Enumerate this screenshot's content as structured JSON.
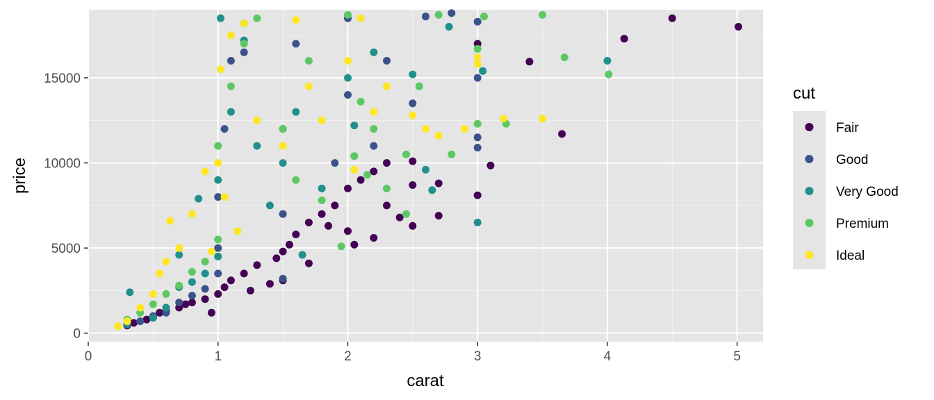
{
  "chart_data": {
    "type": "scatter",
    "title": "",
    "xlabel": "carat",
    "ylabel": "price",
    "xlim": [
      0.0,
      5.2
    ],
    "ylim": [
      -500,
      19000
    ],
    "x_ticks": [
      0,
      1,
      2,
      3,
      4,
      5
    ],
    "x_tick_labels": [
      "0",
      "1",
      "2",
      "3",
      "4",
      "5"
    ],
    "y_ticks": [
      0,
      5000,
      10000,
      15000
    ],
    "y_tick_labels": [
      "0",
      "5000",
      "10000",
      "15000"
    ],
    "grid": true,
    "legend": {
      "title": "cut",
      "position": "right"
    },
    "series": [
      {
        "name": "Fair",
        "color": "#440154",
        "points": [
          [
            0.3,
            450
          ],
          [
            0.35,
            600
          ],
          [
            0.45,
            800
          ],
          [
            0.5,
            1000
          ],
          [
            0.55,
            1200
          ],
          [
            0.6,
            1300
          ],
          [
            0.7,
            1500
          ],
          [
            0.75,
            1700
          ],
          [
            0.8,
            1800
          ],
          [
            0.9,
            2000
          ],
          [
            1.0,
            2300
          ],
          [
            1.05,
            2700
          ],
          [
            1.1,
            3100
          ],
          [
            1.2,
            3500
          ],
          [
            1.3,
            4000
          ],
          [
            1.45,
            4400
          ],
          [
            1.5,
            4800
          ],
          [
            1.55,
            5200
          ],
          [
            1.6,
            5800
          ],
          [
            1.7,
            6500
          ],
          [
            1.8,
            7000
          ],
          [
            1.9,
            7500
          ],
          [
            2.0,
            8500
          ],
          [
            2.1,
            9000
          ],
          [
            2.2,
            9500
          ],
          [
            2.3,
            10000
          ],
          [
            2.5,
            10100
          ],
          [
            2.5,
            8700
          ],
          [
            2.5,
            6300
          ],
          [
            2.7,
            6900
          ],
          [
            2.7,
            8800
          ],
          [
            3.0,
            8100
          ],
          [
            3.0,
            17000
          ],
          [
            3.1,
            9850
          ],
          [
            3.4,
            15950
          ],
          [
            3.65,
            11700
          ],
          [
            4.13,
            17300
          ],
          [
            4.5,
            18500
          ],
          [
            5.01,
            18000
          ],
          [
            2.05,
            5200
          ],
          [
            2.2,
            5600
          ],
          [
            2.4,
            6800
          ],
          [
            1.85,
            6300
          ],
          [
            1.25,
            2500
          ],
          [
            0.95,
            1200
          ],
          [
            1.5,
            3100
          ],
          [
            1.7,
            4100
          ],
          [
            2.0,
            6000
          ],
          [
            2.3,
            7500
          ],
          [
            1.4,
            2900
          ]
        ]
      },
      {
        "name": "Good",
        "color": "#3b528b",
        "points": [
          [
            0.3,
            500
          ],
          [
            0.4,
            700
          ],
          [
            0.5,
            1000
          ],
          [
            0.6,
            1200
          ],
          [
            0.7,
            1800
          ],
          [
            0.8,
            2200
          ],
          [
            0.9,
            2600
          ],
          [
            1.0,
            3500
          ],
          [
            1.0,
            5000
          ],
          [
            1.0,
            8000
          ],
          [
            1.05,
            12000
          ],
          [
            1.1,
            16000
          ],
          [
            1.2,
            18200
          ],
          [
            1.5,
            3200
          ],
          [
            1.5,
            7000
          ],
          [
            1.5,
            12000
          ],
          [
            1.6,
            17000
          ],
          [
            2.0,
            14000
          ],
          [
            2.0,
            18500
          ],
          [
            2.2,
            11000
          ],
          [
            2.5,
            13500
          ],
          [
            2.6,
            18600
          ],
          [
            2.8,
            18800
          ],
          [
            3.0,
            10900
          ],
          [
            3.0,
            15000
          ],
          [
            3.0,
            18300
          ],
          [
            3.0,
            11500
          ],
          [
            1.2,
            16500
          ],
          [
            1.9,
            10000
          ],
          [
            2.3,
            16000
          ]
        ]
      },
      {
        "name": "Very Good",
        "color": "#21908c",
        "points": [
          [
            0.3,
            550
          ],
          [
            0.32,
            2400
          ],
          [
            0.5,
            900
          ],
          [
            0.6,
            1500
          ],
          [
            0.7,
            2700
          ],
          [
            0.8,
            3000
          ],
          [
            0.85,
            7900
          ],
          [
            0.9,
            3500
          ],
          [
            1.0,
            4500
          ],
          [
            1.0,
            9000
          ],
          [
            1.02,
            18500
          ],
          [
            1.1,
            13000
          ],
          [
            1.2,
            17200
          ],
          [
            1.3,
            11000
          ],
          [
            1.5,
            10000
          ],
          [
            1.6,
            13000
          ],
          [
            1.65,
            4600
          ],
          [
            1.8,
            8500
          ],
          [
            2.0,
            15000
          ],
          [
            2.2,
            16500
          ],
          [
            2.5,
            15200
          ],
          [
            2.6,
            9600
          ],
          [
            2.65,
            8400
          ],
          [
            2.78,
            18000
          ],
          [
            3.0,
            6500
          ],
          [
            3.04,
            15400
          ],
          [
            4.0,
            16000
          ],
          [
            1.4,
            7500
          ],
          [
            2.05,
            12200
          ],
          [
            0.7,
            4600
          ]
        ]
      },
      {
        "name": "Premium",
        "color": "#5dc863",
        "points": [
          [
            0.3,
            800
          ],
          [
            0.4,
            1200
          ],
          [
            0.5,
            1700
          ],
          [
            0.6,
            2300
          ],
          [
            0.7,
            2800
          ],
          [
            0.8,
            3600
          ],
          [
            0.9,
            4200
          ],
          [
            1.0,
            5500
          ],
          [
            1.0,
            11000
          ],
          [
            1.1,
            14500
          ],
          [
            1.2,
            17000
          ],
          [
            1.3,
            18500
          ],
          [
            1.5,
            12000
          ],
          [
            1.6,
            9000
          ],
          [
            1.7,
            16000
          ],
          [
            1.8,
            7800
          ],
          [
            1.95,
            5100
          ],
          [
            2.0,
            18700
          ],
          [
            2.05,
            10400
          ],
          [
            2.1,
            13600
          ],
          [
            2.2,
            12000
          ],
          [
            2.3,
            8500
          ],
          [
            2.45,
            10500
          ],
          [
            2.55,
            14500
          ],
          [
            2.7,
            18700
          ],
          [
            2.8,
            10500
          ],
          [
            3.0,
            12300
          ],
          [
            3.0,
            16700
          ],
          [
            3.05,
            18600
          ],
          [
            3.22,
            12300
          ],
          [
            3.5,
            18700
          ],
          [
            3.67,
            16200
          ],
          [
            4.01,
            15200
          ],
          [
            2.45,
            7000
          ],
          [
            2.15,
            9300
          ]
        ]
      },
      {
        "name": "Ideal",
        "color": "#fde725",
        "points": [
          [
            0.23,
            400
          ],
          [
            0.3,
            700
          ],
          [
            0.4,
            1500
          ],
          [
            0.5,
            2300
          ],
          [
            0.55,
            3500
          ],
          [
            0.6,
            4200
          ],
          [
            0.63,
            6600
          ],
          [
            0.7,
            5000
          ],
          [
            0.8,
            7000
          ],
          [
            0.9,
            9500
          ],
          [
            1.0,
            10000
          ],
          [
            1.02,
            15500
          ],
          [
            1.1,
            17500
          ],
          [
            1.2,
            18200
          ],
          [
            1.3,
            12500
          ],
          [
            1.5,
            11000
          ],
          [
            1.6,
            18400
          ],
          [
            1.7,
            14500
          ],
          [
            1.8,
            12500
          ],
          [
            2.0,
            16000
          ],
          [
            2.1,
            18500
          ],
          [
            2.2,
            13000
          ],
          [
            2.3,
            14500
          ],
          [
            2.5,
            12800
          ],
          [
            2.6,
            12000
          ],
          [
            2.7,
            11600
          ],
          [
            2.9,
            12000
          ],
          [
            3.0,
            16200
          ],
          [
            3.0,
            15800
          ],
          [
            3.2,
            12600
          ],
          [
            3.5,
            12600
          ],
          [
            1.05,
            8000
          ],
          [
            1.15,
            6000
          ],
          [
            0.95,
            4800
          ],
          [
            2.05,
            9600
          ]
        ]
      }
    ]
  }
}
